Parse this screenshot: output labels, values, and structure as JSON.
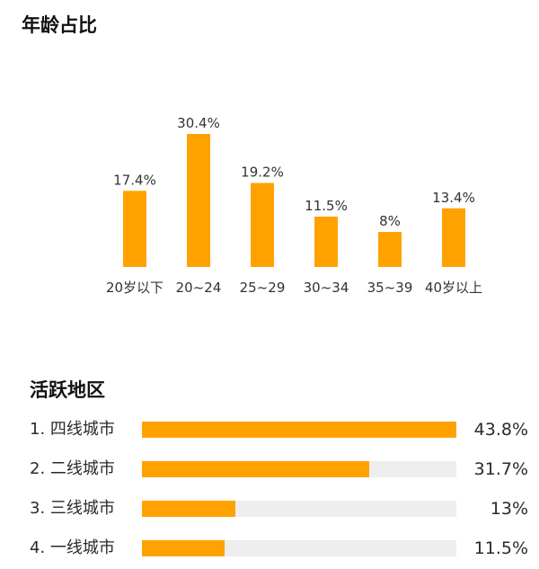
{
  "colors": {
    "accent": "#FFA200",
    "track": "#EEEEEE"
  },
  "chart_data": [
    {
      "type": "bar",
      "title": "年龄占比",
      "categories": [
        "20岁以下",
        "20~24",
        "25~29",
        "30~34",
        "35~39",
        "40岁以上"
      ],
      "values": [
        17.4,
        30.4,
        19.2,
        11.5,
        8,
        13.4
      ],
      "value_labels": [
        "17.4%",
        "30.4%",
        "19.2%",
        "11.5%",
        "8%",
        "13.4%"
      ],
      "xlabel": "",
      "ylabel": "",
      "ylim": [
        0,
        30.4
      ],
      "grid": false
    },
    {
      "type": "bar",
      "orientation": "horizontal",
      "title": "活跃地区",
      "categories": [
        "1. 四线城市",
        "2. 二线城市",
        "3. 三线城市",
        "4. 一线城市"
      ],
      "values": [
        43.8,
        31.7,
        13,
        11.5
      ],
      "value_labels": [
        "43.8%",
        "31.7%",
        "13%",
        "11.5%"
      ],
      "xlim": [
        0,
        43.8
      ],
      "grid": false
    }
  ]
}
